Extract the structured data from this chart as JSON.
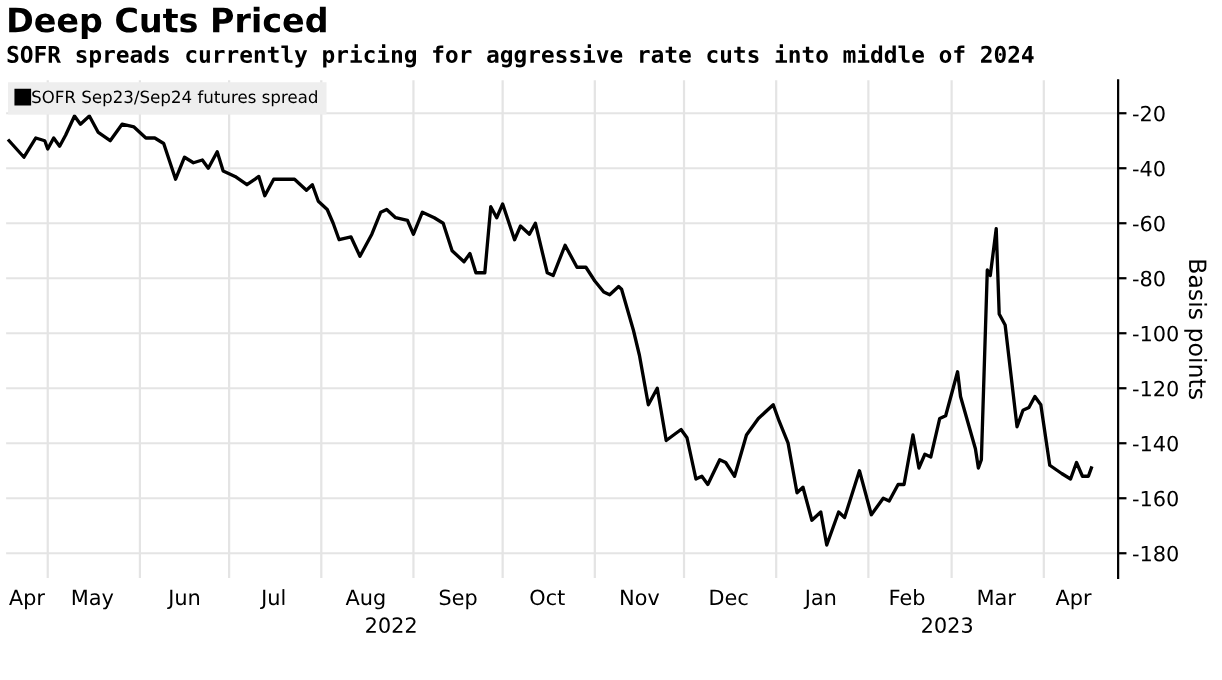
{
  "chart_data": {
    "type": "line",
    "title": "Deep Cuts Priced",
    "subtitle": "SOFR spreads currently pricing for aggressive rate cuts into middle of 2024",
    "ylabel": "Basis points",
    "x": [
      "2022-04-18",
      "2022-04-23",
      "2022-04-27",
      "2022-04-30",
      "2022-05-01",
      "2022-05-03",
      "2022-05-05",
      "2022-05-07",
      "2022-05-10",
      "2022-05-12",
      "2022-05-15",
      "2022-05-18",
      "2022-05-22",
      "2022-05-26",
      "2022-05-30",
      "2022-06-03",
      "2022-06-06",
      "2022-06-09",
      "2022-06-13",
      "2022-06-16",
      "2022-06-19",
      "2022-06-22",
      "2022-06-24",
      "2022-06-27",
      "2022-06-29",
      "2022-07-03",
      "2022-07-07",
      "2022-07-11",
      "2022-07-13",
      "2022-07-16",
      "2022-07-21",
      "2022-07-23",
      "2022-07-27",
      "2022-07-29",
      "2022-07-31",
      "2022-08-03",
      "2022-08-05",
      "2022-08-07",
      "2022-08-11",
      "2022-08-14",
      "2022-08-18",
      "2022-08-21",
      "2022-08-23",
      "2022-08-26",
      "2022-08-30",
      "2022-09-01",
      "2022-09-04",
      "2022-09-08",
      "2022-09-11",
      "2022-09-14",
      "2022-09-18",
      "2022-09-20",
      "2022-09-22",
      "2022-09-25",
      "2022-09-27",
      "2022-09-29",
      "2022-10-01",
      "2022-10-05",
      "2022-10-07",
      "2022-10-10",
      "2022-10-12",
      "2022-10-16",
      "2022-10-18",
      "2022-10-22",
      "2022-10-26",
      "2022-10-29",
      "2022-11-01",
      "2022-11-04",
      "2022-11-06",
      "2022-11-09",
      "2022-11-10",
      "2022-11-14",
      "2022-11-16",
      "2022-11-19",
      "2022-11-22",
      "2022-11-25",
      "2022-11-30",
      "2022-12-02",
      "2022-12-05",
      "2022-12-07",
      "2022-12-09",
      "2022-12-13",
      "2022-12-15",
      "2022-12-18",
      "2022-12-22",
      "2022-12-26",
      "2022-12-31",
      "2023-01-02",
      "2023-01-05",
      "2023-01-08",
      "2023-01-10",
      "2023-01-13",
      "2023-01-16",
      "2023-01-18",
      "2023-01-20",
      "2023-01-22",
      "2023-01-24",
      "2023-01-29",
      "2023-02-02",
      "2023-02-06",
      "2023-02-08",
      "2023-02-11",
      "2023-02-13",
      "2023-02-16",
      "2023-02-18",
      "2023-02-20",
      "2023-02-22",
      "2023-02-25",
      "2023-02-27",
      "2023-03-03",
      "2023-03-04",
      "2023-03-09",
      "2023-03-10",
      "2023-03-11",
      "2023-03-13",
      "2023-03-14",
      "2023-03-16",
      "2023-03-17",
      "2023-03-19",
      "2023-03-23",
      "2023-03-25",
      "2023-03-27",
      "2023-03-29",
      "2023-03-31",
      "2023-04-03",
      "2023-04-07",
      "2023-04-10",
      "2023-04-12",
      "2023-04-14",
      "2023-04-16",
      "2023-04-17"
    ],
    "series": [
      {
        "name": "SOFR Sep23/Sep24 futures spread",
        "color": "#000000",
        "values": [
          -30,
          -36,
          -29,
          -30,
          -33,
          -29,
          -32,
          -28,
          -21,
          -24,
          -21,
          -27,
          -30,
          -24,
          -25,
          -29,
          -29,
          -31,
          -44,
          -36,
          -38,
          -37,
          -40,
          -34,
          -41,
          -43,
          -46,
          -43,
          -50,
          -44,
          -44,
          -44,
          -48,
          -46,
          -52,
          -55,
          -60,
          -66,
          -65,
          -72,
          -64,
          -56,
          -55,
          -58,
          -59,
          -64,
          -56,
          -58,
          -60,
          -70,
          -74,
          -71,
          -78,
          -78,
          -54,
          -58,
          -53,
          -66,
          -61,
          -64,
          -60,
          -78,
          -79,
          -68,
          -76,
          -76,
          -81,
          -85,
          -86,
          -83,
          -84,
          -99,
          -108,
          -126,
          -120,
          -139,
          -135,
          -138,
          -153,
          -152,
          -155,
          -146,
          -147,
          -152,
          -137,
          -131,
          -126,
          -132,
          -140,
          -158,
          -156,
          -168,
          -165,
          -177,
          -171,
          -165,
          -167,
          -150,
          -166,
          -160,
          -161,
          -155,
          -155,
          -137,
          -149,
          -144,
          -145,
          -131,
          -130,
          -114,
          -123,
          -142,
          -149,
          -146,
          -77,
          -79,
          -62,
          -93,
          -97,
          -134,
          -128,
          -127,
          -123,
          -126,
          -148,
          -151,
          -153,
          -147,
          -152,
          -152,
          -149
        ]
      }
    ],
    "xlim": [
      "2022-04-17",
      "2023-04-26"
    ],
    "ylim": [
      -189,
      -8
    ],
    "yticks": [
      -20,
      -40,
      -60,
      -80,
      -100,
      -120,
      -140,
      -160,
      -180
    ],
    "xticks": [
      {
        "value": "2022-04-24",
        "label": "Apr"
      },
      {
        "value": "2022-05-01",
        "label": null
      },
      {
        "value": "2022-05-16",
        "label": "May"
      },
      {
        "value": "2022-06-01",
        "label": null
      },
      {
        "value": "2022-06-16",
        "label": "Jun"
      },
      {
        "value": "2022-07-01",
        "label": null
      },
      {
        "value": "2022-07-16",
        "label": "Jul"
      },
      {
        "value": "2022-08-01",
        "label": null
      },
      {
        "value": "2022-08-16",
        "label": "Aug"
      },
      {
        "value": "2022-09-01",
        "label": null
      },
      {
        "value": "2022-09-16",
        "label": "Sep"
      },
      {
        "value": "2022-10-01",
        "label": null
      },
      {
        "value": "2022-10-16",
        "label": "Oct"
      },
      {
        "value": "2022-11-01",
        "label": null
      },
      {
        "value": "2022-11-16",
        "label": "Nov"
      },
      {
        "value": "2022-12-01",
        "label": null
      },
      {
        "value": "2022-12-16",
        "label": "Dec"
      },
      {
        "value": "2023-01-01",
        "label": null
      },
      {
        "value": "2023-01-16",
        "label": "Jan"
      },
      {
        "value": "2023-02-01",
        "label": null
      },
      {
        "value": "2023-02-14",
        "label": "Feb"
      },
      {
        "value": "2023-03-01",
        "label": null
      },
      {
        "value": "2023-03-16",
        "label": "Mar"
      },
      {
        "value": "2023-04-01",
        "label": null
      },
      {
        "value": "2023-04-11",
        "label": "Apr"
      }
    ],
    "annotations": [
      "2022",
      "2023"
    ],
    "grid": true,
    "legend": "top left",
    "line_style": "solid",
    "marker": "none"
  }
}
